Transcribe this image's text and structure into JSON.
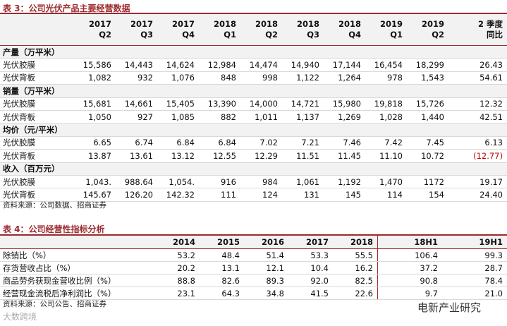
{
  "table3": {
    "title": "表 3：公司光伏产品主要经营数据",
    "header": [
      [
        "2017",
        "Q2"
      ],
      [
        "2017",
        "Q3"
      ],
      [
        "2017",
        "Q4"
      ],
      [
        "2018",
        "Q1"
      ],
      [
        "2018",
        "Q2"
      ],
      [
        "2018",
        "Q3"
      ],
      [
        "2018",
        "Q4"
      ],
      [
        "2019",
        "Q1"
      ],
      [
        "2019",
        "Q2"
      ],
      [
        "2 季度",
        "同比"
      ]
    ],
    "sections": [
      {
        "label": "产量（万平米）",
        "rows": [
          {
            "label": "光伏胶膜",
            "cells": [
              "15,586",
              "14,443",
              "14,624",
              "12,984",
              "14,474",
              "14,940",
              "17,144",
              "16,454",
              "18,299",
              "26.43"
            ]
          },
          {
            "label": "光伏背板",
            "cells": [
              "1,082",
              "932",
              "1,076",
              "848",
              "998",
              "1,122",
              "1,264",
              "978",
              "1,543",
              "54.61"
            ]
          }
        ]
      },
      {
        "label": "销量（万平米）",
        "rows": [
          {
            "label": "光伏胶膜",
            "cells": [
              "15,681",
              "14,661",
              "15,405",
              "13,390",
              "14,000",
              "14,721",
              "15,980",
              "19,818",
              "15,726",
              "12.32"
            ]
          },
          {
            "label": "光伏背板",
            "cells": [
              "1,050",
              "927",
              "1,085",
              "882",
              "1,011",
              "1,137",
              "1,269",
              "1,028",
              "1,440",
              "42.51"
            ]
          }
        ]
      },
      {
        "label": "均价（元/平米）",
        "rows": [
          {
            "label": "光伏胶膜",
            "cells": [
              "6.65",
              "6.74",
              "6.84",
              "6.84",
              "7.02",
              "7.21",
              "7.46",
              "7.42",
              "7.45",
              "6.13"
            ]
          },
          {
            "label": "光伏背板",
            "cells": [
              "13.87",
              "13.61",
              "13.12",
              "12.55",
              "12.29",
              "11.51",
              "11.45",
              "11.10",
              "10.72",
              "(12.77)"
            ]
          }
        ]
      },
      {
        "label": "收入（百万元）",
        "rows": [
          {
            "label": "光伏胶膜",
            "cells": [
              "1,043.",
              "988.64",
              "1,054.",
              "916",
              "984",
              "1,061",
              "1,192",
              "1,470",
              "1172",
              "19.17"
            ]
          },
          {
            "label": "光伏背板",
            "cells": [
              "145.67",
              "126.20",
              "142.32",
              "111",
              "124",
              "131",
              "145",
              "114",
              "154",
              "24.40"
            ]
          }
        ]
      }
    ],
    "source": "资料来源：公司数据、招商证券"
  },
  "table4": {
    "title": "表 4：公司经营性指标分析",
    "header": [
      "2014",
      "2015",
      "2016",
      "2017",
      "2018",
      "18H1",
      "19H1"
    ],
    "rows": [
      {
        "label": "除销比（%）",
        "cells": [
          "53.2",
          "48.4",
          "51.4",
          "53.3",
          "55.5",
          "106.4",
          "99.3"
        ]
      },
      {
        "label": "存货营收占比（%）",
        "cells": [
          "20.2",
          "13.1",
          "12.1",
          "10.4",
          "16.2",
          "37.2",
          "28.7"
        ]
      },
      {
        "label": "商品劳务获现金营收比例（%）",
        "cells": [
          "88.8",
          "82.6",
          "89.3",
          "92.0",
          "82.5",
          "90.8",
          "78.4"
        ]
      },
      {
        "label": "经营现金流税后净利润比（%）",
        "cells": [
          "23.1",
          "64.3",
          "34.8",
          "41.5",
          "22.6",
          "9.7",
          "21.0"
        ]
      }
    ],
    "source": "资料来源：公司公告、招商证券"
  },
  "watermark": "电新产业研究",
  "logo": "大数跨境"
}
